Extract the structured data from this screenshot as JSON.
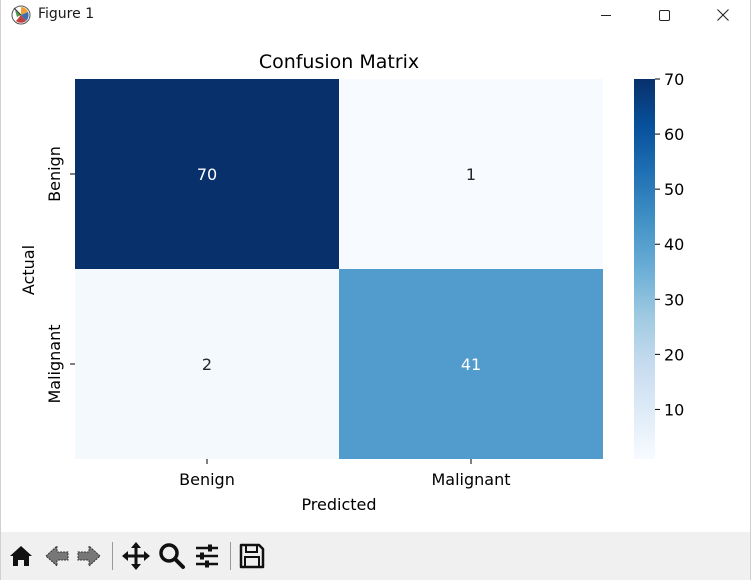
{
  "window": {
    "title": "Figure 1"
  },
  "figure": {
    "title": "Confusion Matrix",
    "xlabel": "Predicted",
    "ylabel": "Actual"
  },
  "chart_data": {
    "type": "heatmap",
    "title": "Confusion Matrix",
    "xlabel": "Predicted",
    "ylabel": "Actual",
    "x_categories": [
      "Benign",
      "Malignant"
    ],
    "y_categories": [
      "Benign",
      "Malignant"
    ],
    "values": [
      [
        70,
        1
      ],
      [
        2,
        41
      ]
    ],
    "colormap": "Blues",
    "colorbar": {
      "range": [
        1,
        70
      ],
      "ticks": [
        10,
        20,
        30,
        40,
        50,
        60,
        70
      ]
    },
    "grid": false,
    "annotations": true
  },
  "toolbar": {
    "tools": [
      "home-icon",
      "back-icon",
      "forward-icon",
      "pan-icon",
      "zoom-icon",
      "configure-subplots-icon",
      "save-icon"
    ]
  },
  "colors": {
    "dark": "#08306b",
    "light": "#f7fbff",
    "toolbar_bg": "#f0f0f0"
  }
}
